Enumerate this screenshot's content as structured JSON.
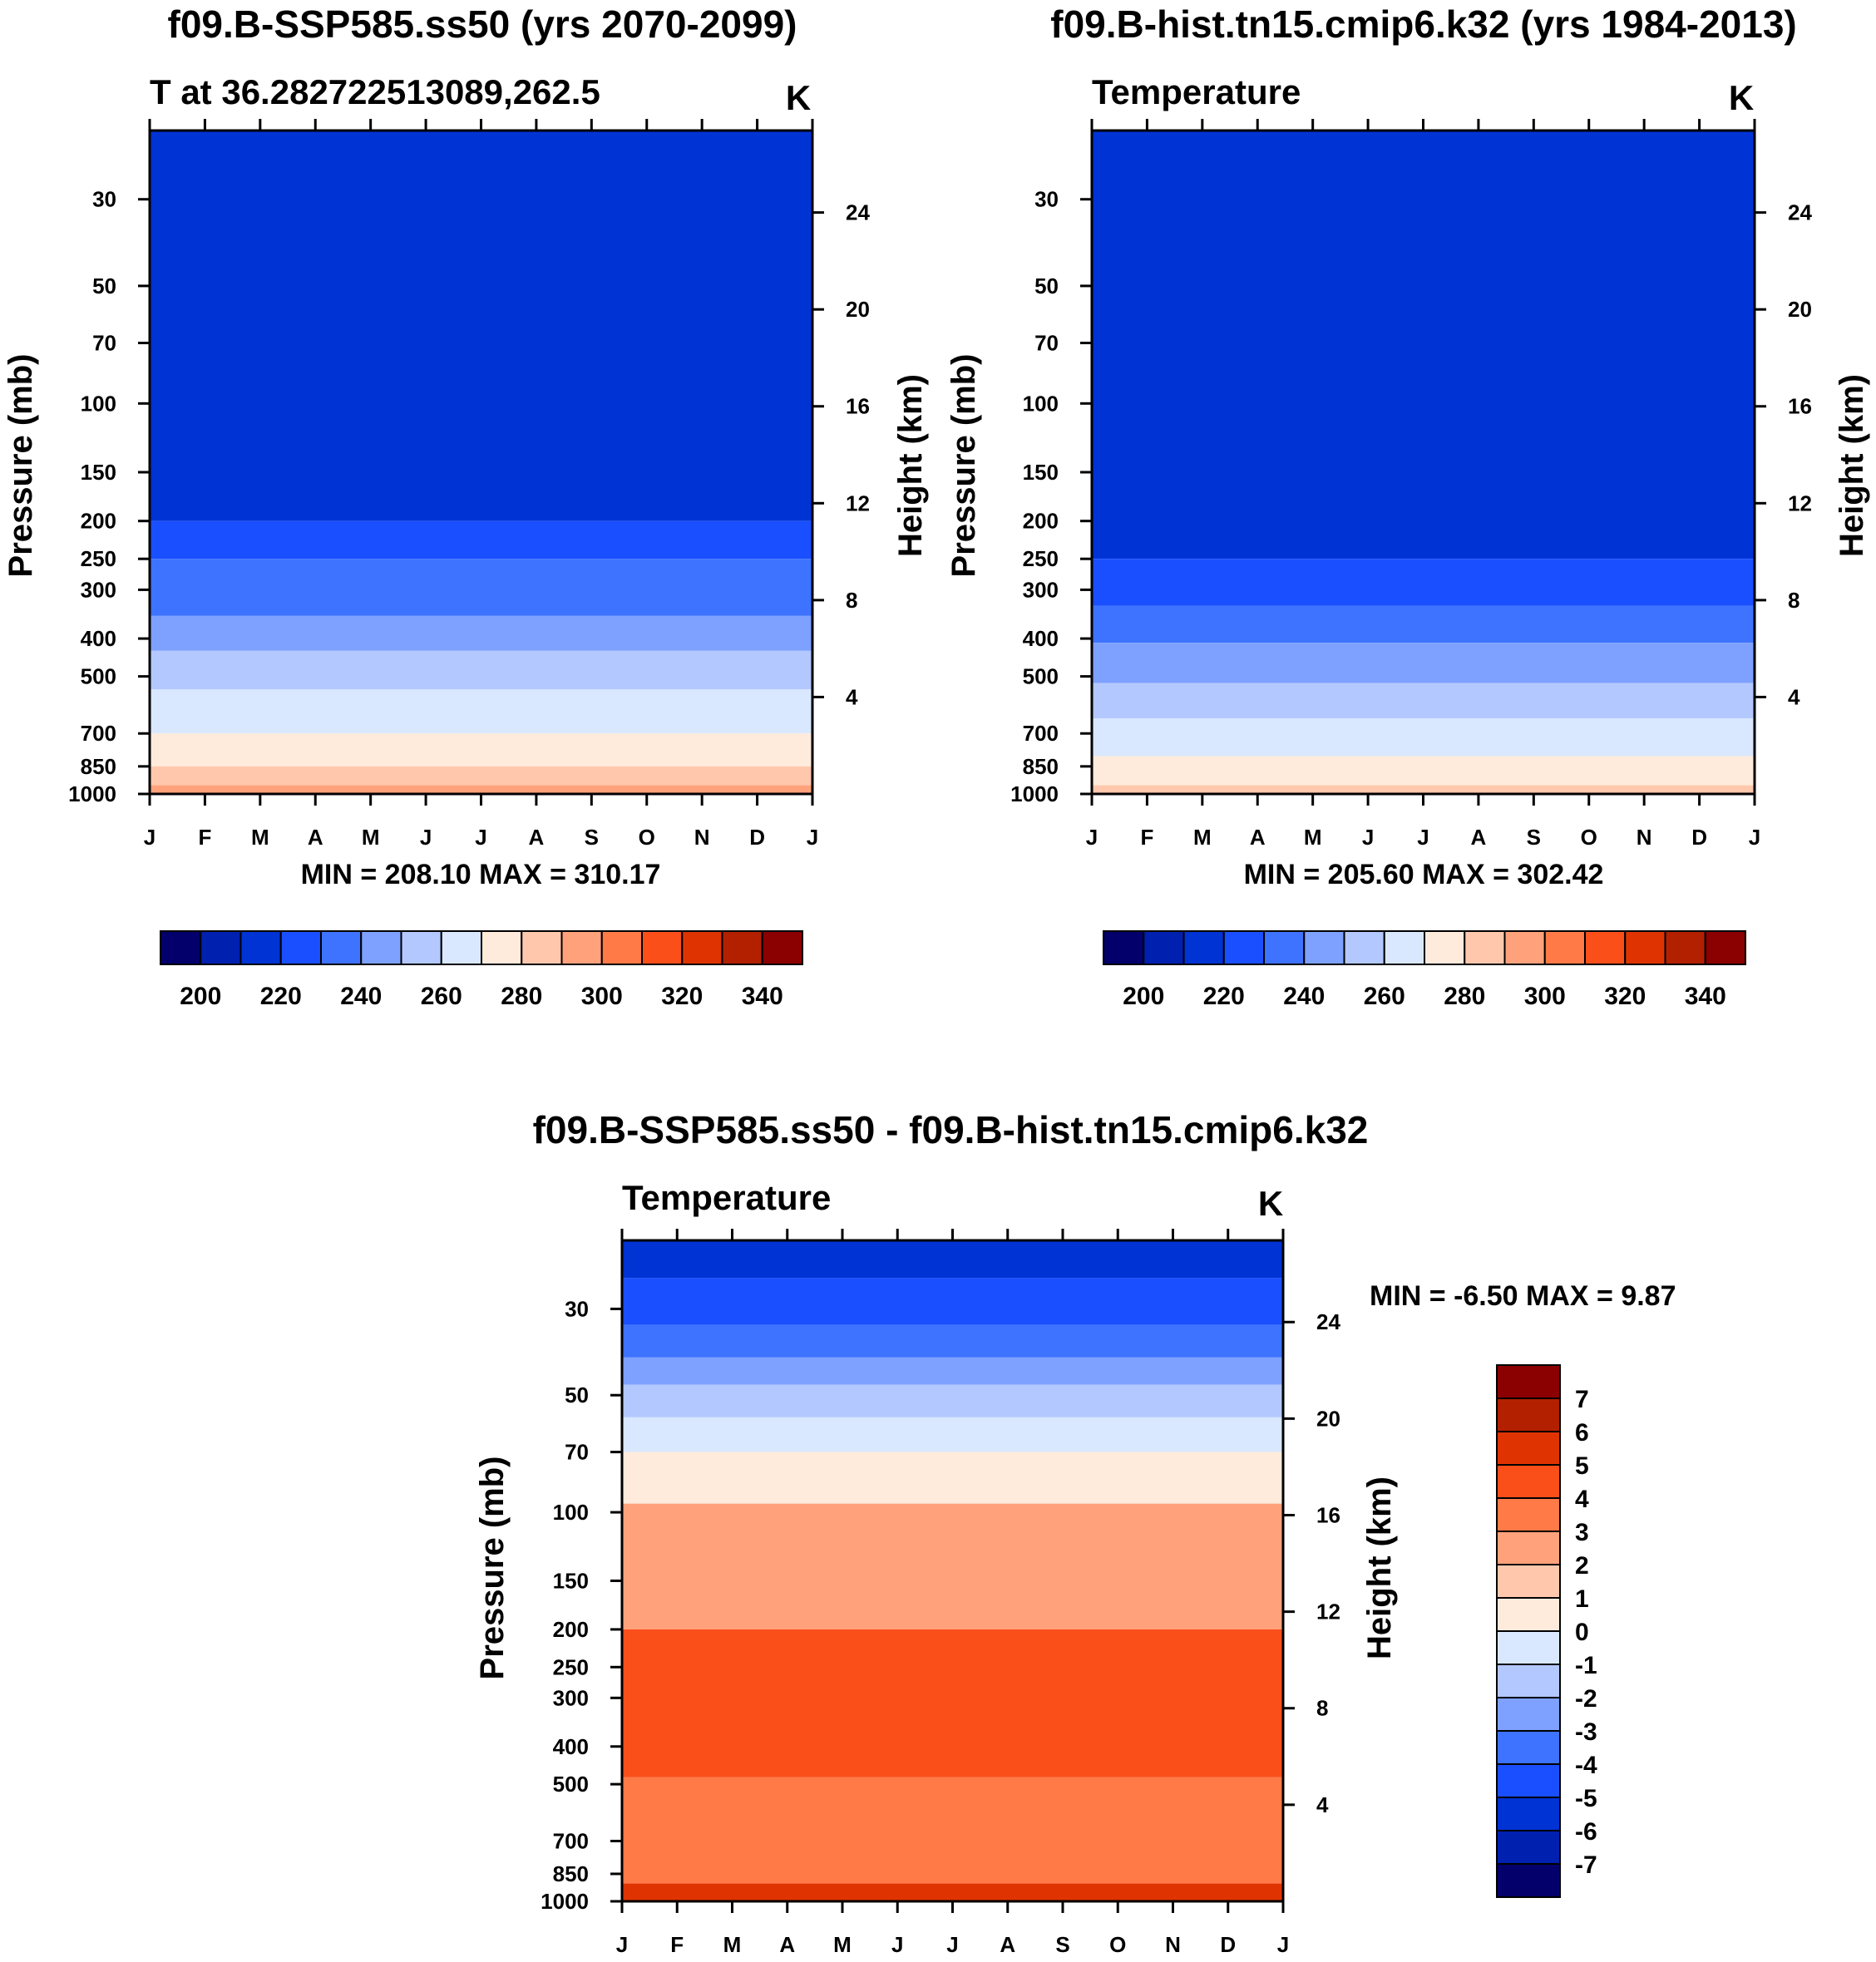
{
  "chart_data": [
    {
      "type": "heatmap",
      "panel": "top-left",
      "title": "f09.B-SSP585.ss50 (yrs 2070-2099)",
      "subtitle_left": "T at 36.282722513089,262.5",
      "units": "K",
      "x": [
        "J",
        "F",
        "M",
        "A",
        "M",
        "J",
        "J",
        "A",
        "S",
        "O",
        "N",
        "D",
        "J"
      ],
      "xlabel": "",
      "ylabel": "Pressure (mb)",
      "ylabel_right": "Height (km)",
      "y_pressure_ticks": [
        "30",
        "50",
        "70",
        "100",
        "150",
        "200",
        "250",
        "300",
        "400",
        "500",
        "700",
        "850",
        "1000"
      ],
      "y_pressure_values": [
        30,
        50,
        70,
        100,
        150,
        200,
        250,
        300,
        400,
        500,
        700,
        850,
        1000
      ],
      "y_height_ticks": [
        "24",
        "20",
        "16",
        "12",
        "8",
        "4"
      ],
      "y_height_values": [
        24,
        20,
        16,
        12,
        8,
        4
      ],
      "minmax": "MIN = 208.10 MAX = 310.17",
      "min": 208.1,
      "max": 310.17,
      "top_pressure": 20,
      "bands": [
        {
          "p": 200,
          "color_index": 2
        },
        {
          "p": 250,
          "color_index": 3
        },
        {
          "p": 350,
          "color_index": 4
        },
        {
          "p": 430,
          "color_index": 5
        },
        {
          "p": 540,
          "color_index": 6
        },
        {
          "p": 700,
          "color_index": 7
        },
        {
          "p": 850,
          "color_index": 8
        },
        {
          "p": 950,
          "color_index": 9
        },
        {
          "p": 1000,
          "color_index": 10
        }
      ],
      "colorbar_labels": [
        "200",
        "220",
        "240",
        "260",
        "280",
        "300",
        "320",
        "340"
      ],
      "colorbar_values": [
        200,
        220,
        240,
        260,
        280,
        300,
        320,
        340
      ]
    },
    {
      "type": "heatmap",
      "panel": "top-right",
      "title": "f09.B-hist.tn15.cmip6.k32 (yrs 1984-2013)",
      "subtitle_left": "Temperature",
      "units": "K",
      "x": [
        "J",
        "F",
        "M",
        "A",
        "M",
        "J",
        "J",
        "A",
        "S",
        "O",
        "N",
        "D",
        "J"
      ],
      "xlabel": "",
      "ylabel": "Pressure (mb)",
      "ylabel_right": "Height (km)",
      "y_pressure_ticks": [
        "30",
        "50",
        "70",
        "100",
        "150",
        "200",
        "250",
        "300",
        "400",
        "500",
        "700",
        "850",
        "1000"
      ],
      "y_pressure_values": [
        30,
        50,
        70,
        100,
        150,
        200,
        250,
        300,
        400,
        500,
        700,
        850,
        1000
      ],
      "y_height_ticks": [
        "24",
        "20",
        "16",
        "12",
        "8",
        "4"
      ],
      "y_height_values": [
        24,
        20,
        16,
        12,
        8,
        4
      ],
      "minmax": "MIN = 205.60 MAX = 302.42",
      "min": 205.6,
      "max": 302.42,
      "top_pressure": 20,
      "bands": [
        {
          "p": 250,
          "color_index": 2
        },
        {
          "p": 330,
          "color_index": 3
        },
        {
          "p": 410,
          "color_index": 4
        },
        {
          "p": 520,
          "color_index": 5
        },
        {
          "p": 640,
          "color_index": 6
        },
        {
          "p": 800,
          "color_index": 7
        },
        {
          "p": 950,
          "color_index": 8
        },
        {
          "p": 1000,
          "color_index": 9
        }
      ],
      "colorbar_labels": [
        "200",
        "220",
        "240",
        "260",
        "280",
        "300",
        "320",
        "340"
      ],
      "colorbar_values": [
        200,
        220,
        240,
        260,
        280,
        300,
        320,
        340
      ]
    },
    {
      "type": "heatmap",
      "panel": "bottom",
      "title": "f09.B-SSP585.ss50 - f09.B-hist.tn15.cmip6.k32",
      "subtitle_left": "Temperature",
      "units": "K",
      "x": [
        "J",
        "F",
        "M",
        "A",
        "M",
        "J",
        "J",
        "A",
        "S",
        "O",
        "N",
        "D",
        "J"
      ],
      "xlabel": "",
      "ylabel": "Pressure (mb)",
      "ylabel_right": "Height (km)",
      "y_pressure_ticks": [
        "30",
        "50",
        "70",
        "100",
        "150",
        "200",
        "250",
        "300",
        "400",
        "500",
        "700",
        "850",
        "1000"
      ],
      "y_pressure_values": [
        30,
        50,
        70,
        100,
        150,
        200,
        250,
        300,
        400,
        500,
        700,
        850,
        1000
      ],
      "y_height_ticks": [
        "24",
        "20",
        "16",
        "12",
        "8",
        "4"
      ],
      "y_height_values": [
        24,
        20,
        16,
        12,
        8,
        4
      ],
      "minmax": "MIN =  -6.50 MAX =   9.87",
      "min": -6.5,
      "max": 9.87,
      "top_pressure": 20,
      "bands": [
        {
          "p": 25,
          "color_index": 2
        },
        {
          "p": 33,
          "color_index": 3
        },
        {
          "p": 40,
          "color_index": 4
        },
        {
          "p": 47,
          "color_index": 5
        },
        {
          "p": 57,
          "color_index": 6
        },
        {
          "p": 70,
          "color_index": 7
        },
        {
          "p": 95,
          "color_index": 8
        },
        {
          "p": 200,
          "color_index": 10
        },
        {
          "p": 480,
          "color_index": 12
        },
        {
          "p": 900,
          "color_index": 11
        },
        {
          "p": 1000,
          "color_index": 13
        }
      ],
      "colorbar_labels": [
        "7",
        "6",
        "5",
        "4",
        "3",
        "2",
        "1",
        "0",
        "-1",
        "-2",
        "-3",
        "-4",
        "-5",
        "-6",
        "-7"
      ],
      "colorbar_values": [
        7,
        6,
        5,
        4,
        3,
        2,
        1,
        0,
        -1,
        -2,
        -3,
        -4,
        -5,
        -6,
        -7
      ]
    }
  ],
  "palette": [
    "#03006b",
    "#0020b0",
    "#0033d4",
    "#1a4fff",
    "#3d73ff",
    "#7ea1ff",
    "#b3c8ff",
    "#d9e8ff",
    "#ffebdc",
    "#ffc8ad",
    "#ffa27c",
    "#ff7a46",
    "#fb4f1a",
    "#df3402",
    "#b22000",
    "#8b0000"
  ]
}
